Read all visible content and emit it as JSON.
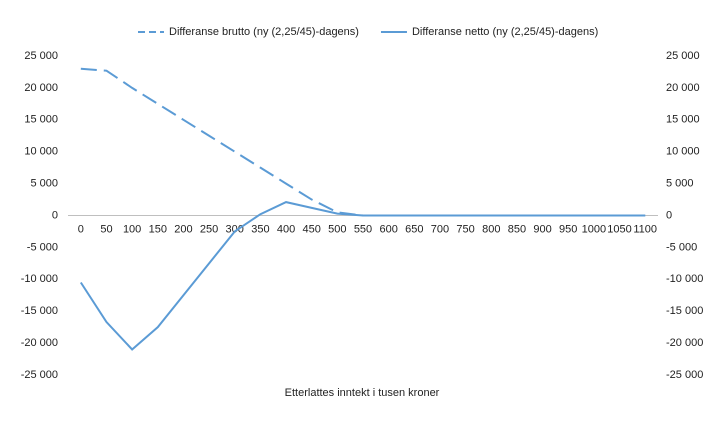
{
  "chart_data": {
    "type": "line",
    "x_label": "Etterlattes inntekt i tusen kroner",
    "categories": [
      "0",
      "50",
      "100",
      "150",
      "200",
      "250",
      "300",
      "350",
      "400",
      "450",
      "500",
      "550",
      "600",
      "650",
      "700",
      "750",
      "800",
      "850",
      "900",
      "950",
      "1000",
      "1050",
      "1100"
    ],
    "series": [
      {
        "name": "Differanse brutto (ny (2,25/45)-dagens)",
        "color": "#5b9bd5",
        "dashed": true,
        "values": [
          23000,
          22700,
          20000,
          17500,
          15000,
          12500,
          10000,
          7500,
          5000,
          2500,
          500,
          0,
          0,
          0,
          0,
          0,
          0,
          0,
          0,
          0,
          0,
          0,
          0
        ]
      },
      {
        "name": "Differanse netto (ny (2,25/45)-dagens)",
        "color": "#5b9bd5",
        "dashed": false,
        "values": [
          -10500,
          -16700,
          -21000,
          -17500,
          -12500,
          -7500,
          -2500,
          200,
          2100,
          1200,
          300,
          0,
          0,
          0,
          0,
          0,
          0,
          0,
          0,
          0,
          0,
          0,
          0
        ]
      }
    ],
    "ylim": [
      -25000,
      25000
    ],
    "yticks": [
      {
        "value": -25000,
        "label": "-25 000"
      },
      {
        "value": -20000,
        "label": "-20 000"
      },
      {
        "value": -15000,
        "label": "-15 000"
      },
      {
        "value": -10000,
        "label": "-10 000"
      },
      {
        "value": -5000,
        "label": "-5 000"
      },
      0,
      {
        "value": 5000,
        "label": "5 000"
      },
      {
        "value": 10000,
        "label": "10 000"
      },
      {
        "value": 15000,
        "label": "15 000"
      },
      {
        "value": 20000,
        "label": "20 000"
      },
      {
        "value": 25000,
        "label": "25 000"
      }
    ],
    "legend": "top"
  }
}
